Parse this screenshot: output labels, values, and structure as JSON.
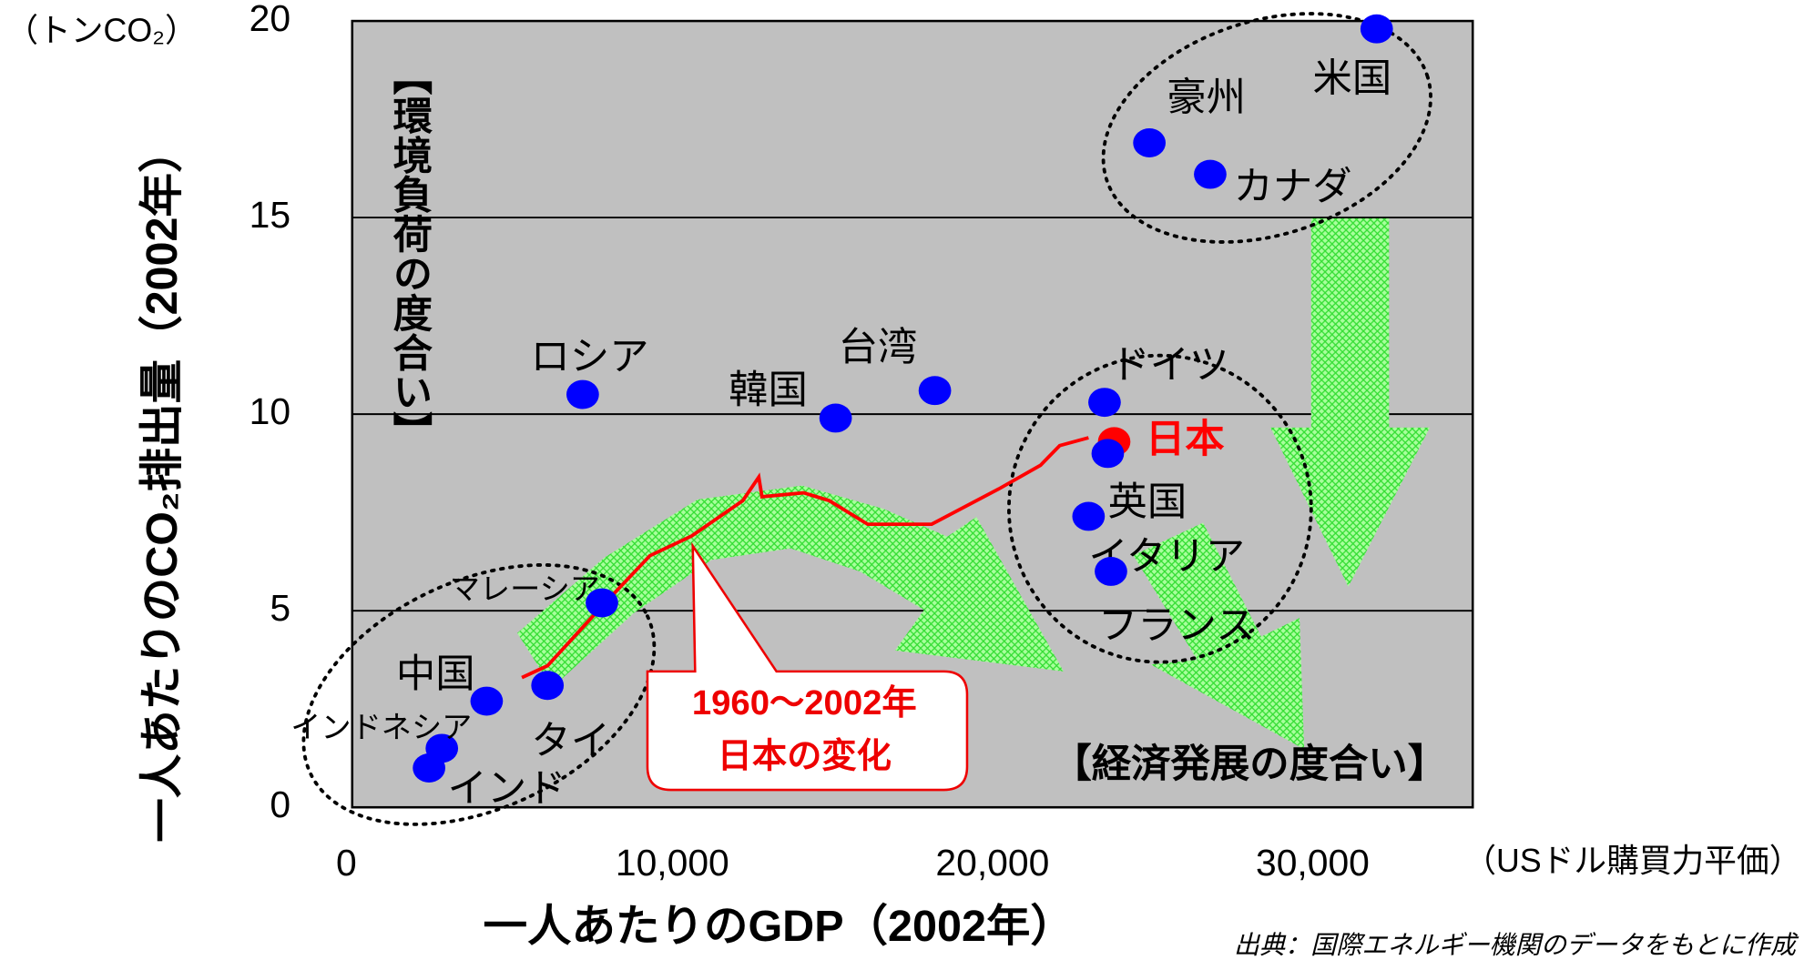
{
  "chart_data": {
    "type": "scatter",
    "y_unit": "（トンCO₂）",
    "y_label": "一人あたりのCO₂排出量（2002年）",
    "x_label": "一人あたりのGDP（2002年）",
    "x_unit": "（USドル購買力平価）",
    "source": "出典：国際エネルギー機関のデータをもとに作成",
    "annotations": {
      "vertical": "【環境負荷の度合い】",
      "horizontal": "【経済発展の度合い】",
      "callout_period": "1960～2002年",
      "callout_text": "日本の変化"
    },
    "xlim": [
      0,
      35000
    ],
    "ylim": [
      0,
      20
    ],
    "xticks": [
      0,
      {
        "value": 10000,
        "label": "10,000"
      },
      {
        "value": 20000,
        "label": "20,000"
      },
      {
        "value": 30000,
        "label": "30,000"
      }
    ],
    "yticks": [
      0,
      5,
      10,
      15,
      20
    ],
    "grid": true,
    "color": "#0000ff",
    "points": [
      {
        "label": "米国",
        "x": 32000,
        "y": 19.8
      },
      {
        "label": "豪州",
        "x": 24900,
        "y": 16.9
      },
      {
        "label": "カナダ",
        "x": 26800,
        "y": 16.1
      },
      {
        "label": "ロシア",
        "x": 7200,
        "y": 10.5
      },
      {
        "label": "韓国",
        "x": 15100,
        "y": 9.9
      },
      {
        "label": "台湾",
        "x": 18200,
        "y": 10.6
      },
      {
        "label": "ドイツ",
        "x": 23500,
        "y": 10.3
      },
      {
        "label": "日本",
        "x": 23800,
        "y": 9.3,
        "color": "#ff0000"
      },
      {
        "label": "英国",
        "x": 23600,
        "y": 9.0
      },
      {
        "label": "イタリア",
        "x": 23000,
        "y": 7.4
      },
      {
        "label": "フランス",
        "x": 23700,
        "y": 6.0
      },
      {
        "label": "マレーシア",
        "x": 7800,
        "y": 5.2
      },
      {
        "label": "タイ",
        "x": 6100,
        "y": 3.1
      },
      {
        "label": "中国",
        "x": 4200,
        "y": 2.7
      },
      {
        "label": "インドネシア",
        "x": 2800,
        "y": 1.5
      },
      {
        "label": "インド",
        "x": 2400,
        "y": 1.0
      }
    ],
    "trajectory": {
      "color": "#ff0000",
      "x": [
        5300,
        6100,
        7900,
        9300,
        10600,
        12200,
        12700,
        12800,
        14100,
        14900,
        16100,
        18100,
        20200,
        21500,
        22100,
        23000
      ],
      "y": [
        3.3,
        3.6,
        5.2,
        6.4,
        6.9,
        7.8,
        8.4,
        7.9,
        8.0,
        7.8,
        7.2,
        7.2,
        8.1,
        8.7,
        9.2,
        9.4
      ]
    }
  }
}
